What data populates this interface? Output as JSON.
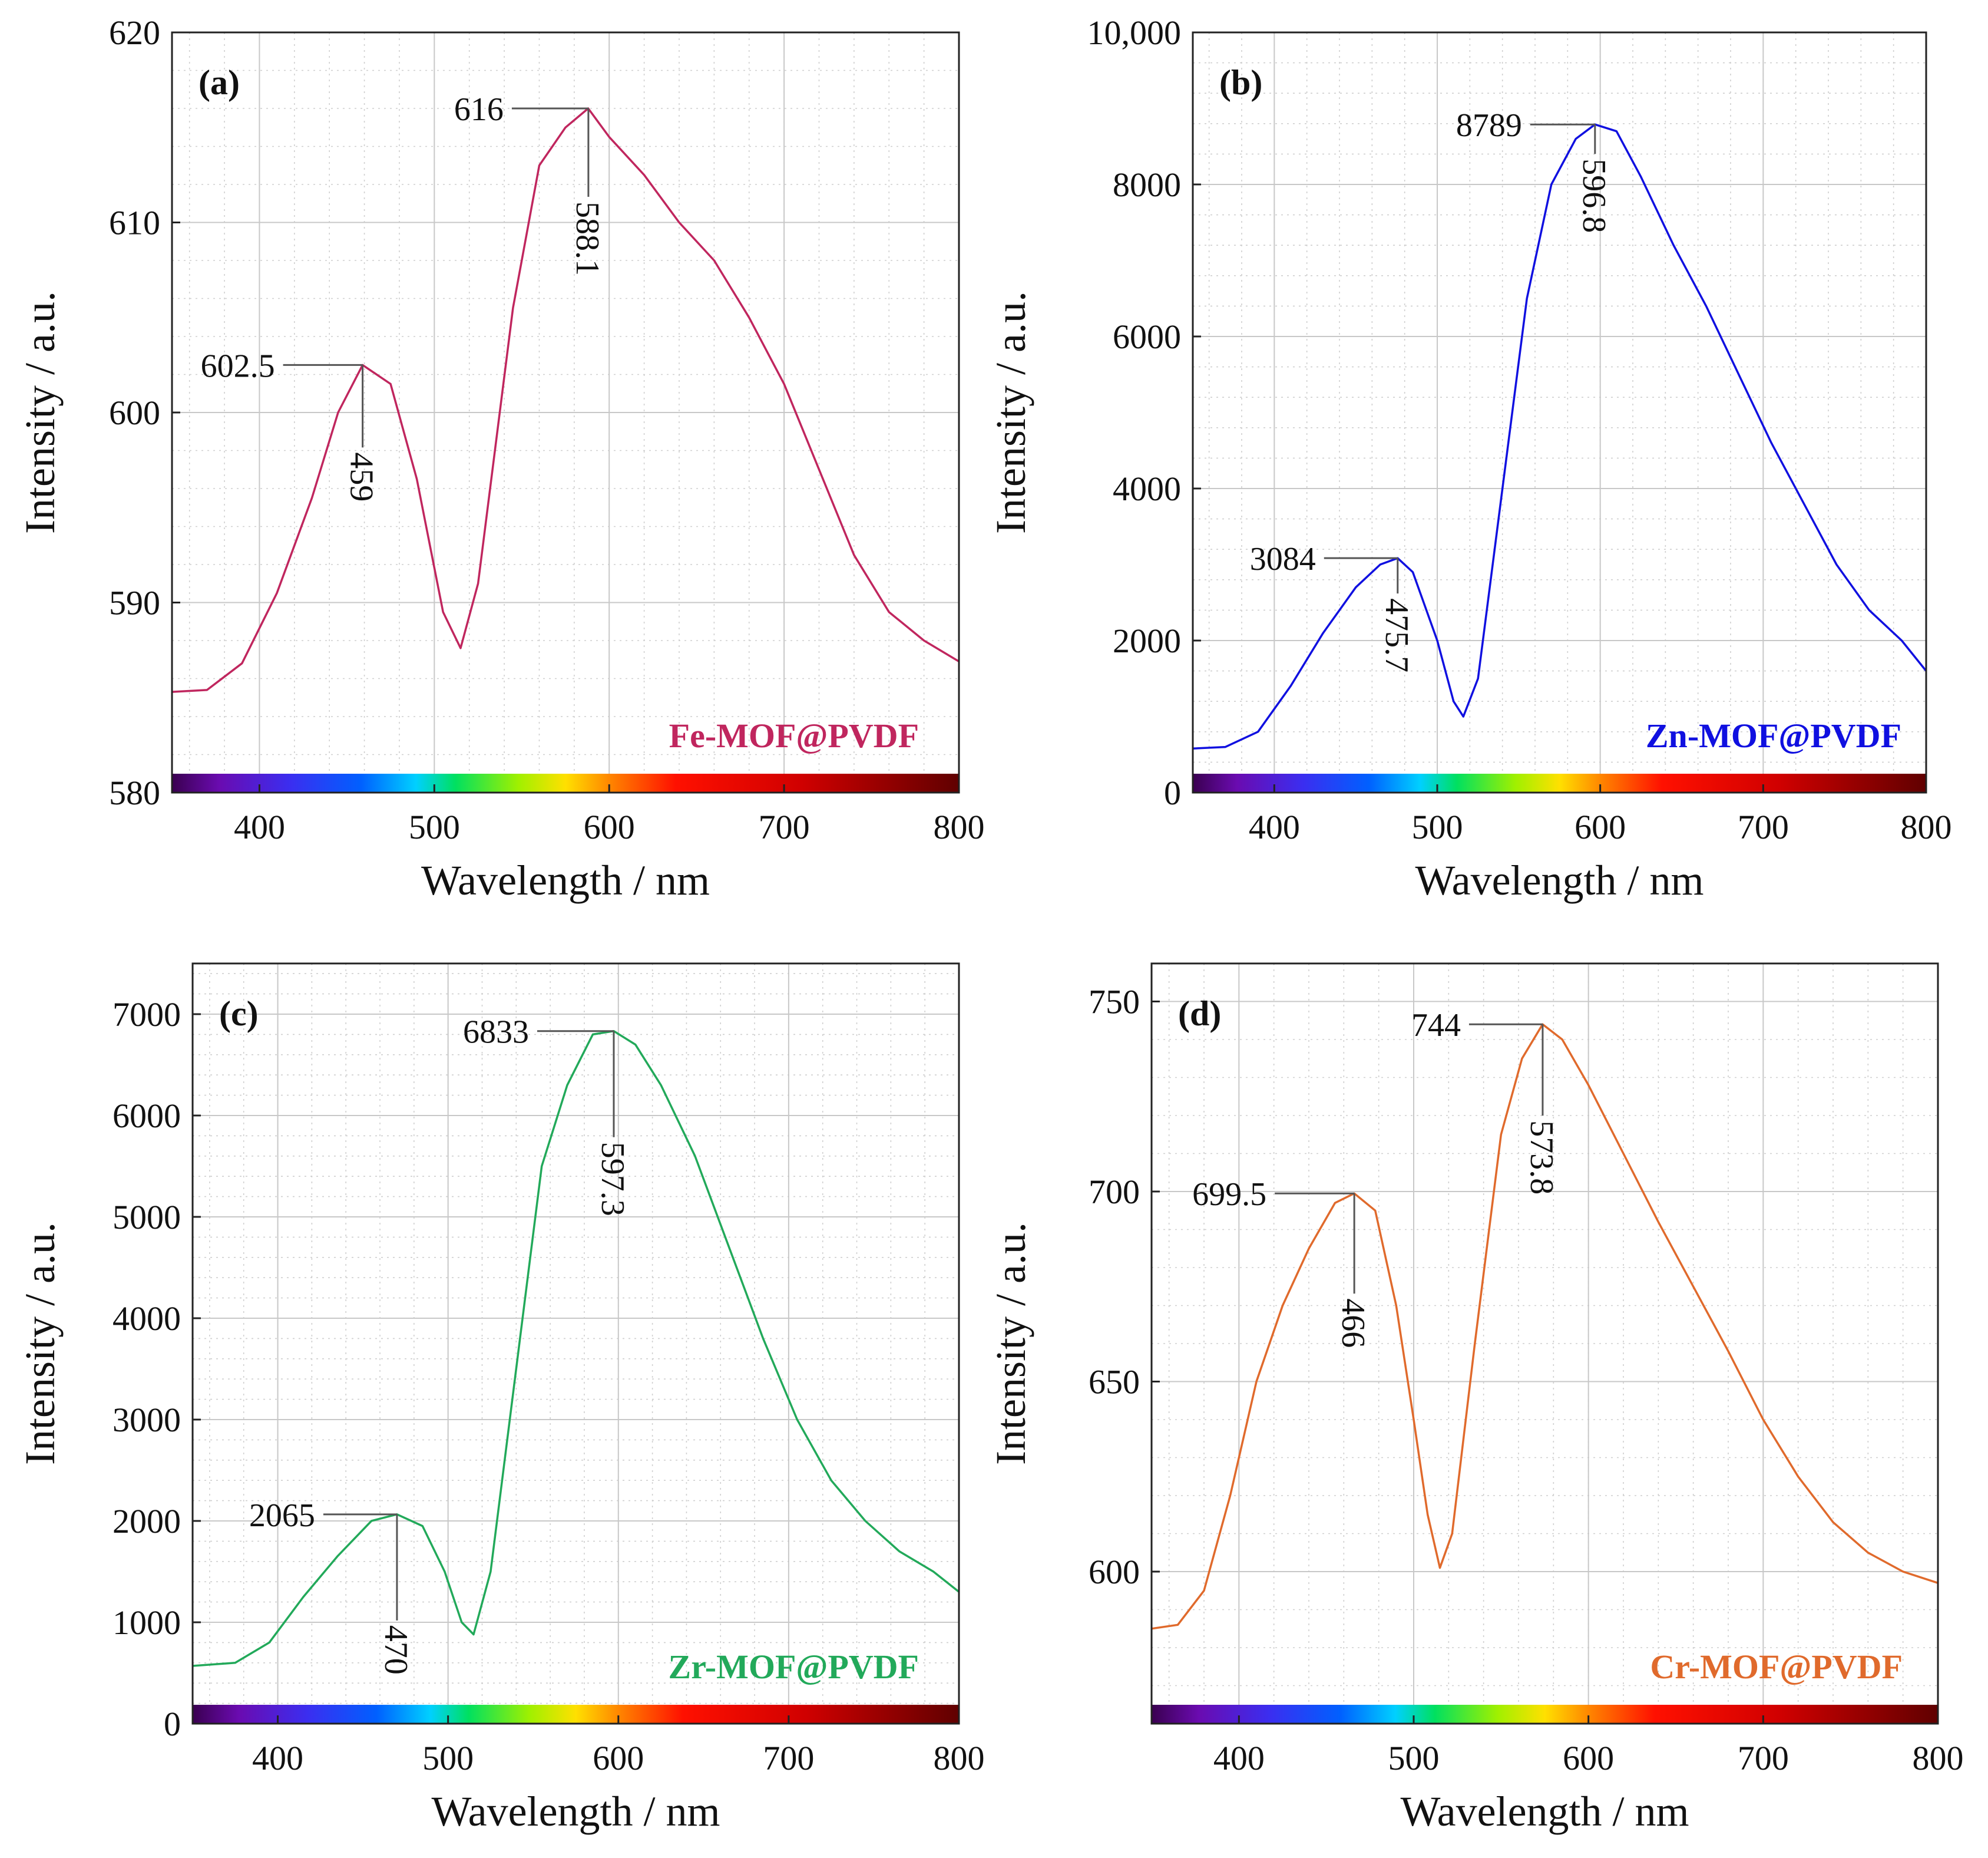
{
  "chart_data": [
    {
      "type": "line",
      "panel_label": "(a)",
      "series_name": "Fe-MOF@PVDF",
      "color": "#c0265e",
      "xlabel": "Wavelength / nm",
      "ylabel": "Intensity / a.u.",
      "xlim": [
        350,
        800
      ],
      "ylim": [
        580,
        620
      ],
      "xticks": [
        400,
        500,
        600,
        700,
        800
      ],
      "xtick_labels": [
        "400",
        "500",
        "600",
        "700",
        "800"
      ],
      "yticks": [
        580,
        590,
        600,
        610,
        620
      ],
      "ytick_labels": [
        "580",
        "590",
        "600",
        "610",
        "620"
      ],
      "points": [
        [
          350,
          585.3
        ],
        [
          370,
          585.4
        ],
        [
          390,
          586.8
        ],
        [
          410,
          590.5
        ],
        [
          430,
          595.5
        ],
        [
          445,
          600.0
        ],
        [
          459,
          602.5
        ],
        [
          475,
          601.5
        ],
        [
          490,
          596.5
        ],
        [
          505,
          589.5
        ],
        [
          515,
          587.6
        ],
        [
          525,
          591.0
        ],
        [
          545,
          605.5
        ],
        [
          560,
          613.0
        ],
        [
          575,
          615.0
        ],
        [
          588,
          616.0
        ],
        [
          600,
          614.5
        ],
        [
          620,
          612.5
        ],
        [
          640,
          610.0
        ],
        [
          660,
          608.0
        ],
        [
          680,
          605.0
        ],
        [
          700,
          601.5
        ],
        [
          720,
          597.0
        ],
        [
          740,
          592.5
        ],
        [
          760,
          589.5
        ],
        [
          780,
          588.0
        ],
        [
          800,
          586.9
        ]
      ],
      "annotations": [
        {
          "label": "602.5",
          "x": 459,
          "y": 602.5,
          "kind": "y"
        },
        {
          "label": "459",
          "x": 459,
          "y": 602.5,
          "kind": "x"
        },
        {
          "label": "616",
          "x": 588.1,
          "y": 616,
          "kind": "y"
        },
        {
          "label": "588.1",
          "x": 588.1,
          "y": 616,
          "kind": "x"
        }
      ]
    },
    {
      "type": "line",
      "panel_label": "(b)",
      "series_name": "Zn-MOF@PVDF",
      "color": "#1010e0",
      "xlabel": "Wavelength / nm",
      "ylabel": "Intensity / a.u.",
      "xlim": [
        350,
        800
      ],
      "ylim": [
        0,
        10000
      ],
      "xticks": [
        400,
        500,
        600,
        700,
        800
      ],
      "xtick_labels": [
        "400",
        "500",
        "600",
        "700",
        "800"
      ],
      "yticks": [
        0,
        2000,
        4000,
        6000,
        8000,
        10000
      ],
      "ytick_labels": [
        "0",
        "2000",
        "4000",
        "6000",
        "8000",
        "10,000"
      ],
      "points": [
        [
          350,
          580
        ],
        [
          370,
          600
        ],
        [
          390,
          800
        ],
        [
          410,
          1400
        ],
        [
          430,
          2100
        ],
        [
          450,
          2700
        ],
        [
          465,
          3000
        ],
        [
          475.7,
          3084
        ],
        [
          485,
          2900
        ],
        [
          500,
          2000
        ],
        [
          510,
          1200
        ],
        [
          516,
          1000
        ],
        [
          525,
          1500
        ],
        [
          540,
          4000
        ],
        [
          555,
          6500
        ],
        [
          570,
          8000
        ],
        [
          585,
          8600
        ],
        [
          596.8,
          8789
        ],
        [
          610,
          8700
        ],
        [
          625,
          8100
        ],
        [
          645,
          7200
        ],
        [
          665,
          6400
        ],
        [
          685,
          5500
        ],
        [
          705,
          4600
        ],
        [
          725,
          3800
        ],
        [
          745,
          3000
        ],
        [
          765,
          2400
        ],
        [
          785,
          2000
        ],
        [
          800,
          1600
        ]
      ],
      "annotations": [
        {
          "label": "3084",
          "x": 475.7,
          "y": 3084,
          "kind": "y"
        },
        {
          "label": "475.7",
          "x": 475.7,
          "y": 3084,
          "kind": "x"
        },
        {
          "label": "8789",
          "x": 596.8,
          "y": 8789,
          "kind": "y"
        },
        {
          "label": "596.8",
          "x": 596.8,
          "y": 8789,
          "kind": "x"
        }
      ]
    },
    {
      "type": "line",
      "panel_label": "(c)",
      "series_name": "Zr-MOF@PVDF",
      "color": "#22a95a",
      "xlabel": "Wavelength / nm",
      "ylabel": "Intensity / a.u.",
      "xlim": [
        350,
        800
      ],
      "ylim": [
        0,
        7500
      ],
      "xticks": [
        400,
        500,
        600,
        700,
        800
      ],
      "xtick_labels": [
        "400",
        "500",
        "600",
        "700",
        "800"
      ],
      "yticks": [
        0,
        1000,
        2000,
        3000,
        4000,
        5000,
        6000,
        7000
      ],
      "ytick_labels": [
        "0",
        "1000",
        "2000",
        "3000",
        "4000",
        "5000",
        "6000",
        "7000"
      ],
      "points": [
        [
          350,
          570
        ],
        [
          375,
          600
        ],
        [
          395,
          800
        ],
        [
          415,
          1250
        ],
        [
          435,
          1650
        ],
        [
          455,
          2000
        ],
        [
          470,
          2065
        ],
        [
          485,
          1950
        ],
        [
          498,
          1500
        ],
        [
          508,
          1000
        ],
        [
          515,
          880
        ],
        [
          525,
          1500
        ],
        [
          540,
          3500
        ],
        [
          555,
          5500
        ],
        [
          570,
          6300
        ],
        [
          585,
          6800
        ],
        [
          597.3,
          6833
        ],
        [
          610,
          6700
        ],
        [
          625,
          6300
        ],
        [
          645,
          5600
        ],
        [
          665,
          4700
        ],
        [
          685,
          3800
        ],
        [
          705,
          3000
        ],
        [
          725,
          2400
        ],
        [
          745,
          2000
        ],
        [
          765,
          1700
        ],
        [
          785,
          1500
        ],
        [
          800,
          1300
        ]
      ],
      "annotations": [
        {
          "label": "2065",
          "x": 470,
          "y": 2065,
          "kind": "y"
        },
        {
          "label": "470",
          "x": 470,
          "y": 2065,
          "kind": "x"
        },
        {
          "label": "6833",
          "x": 597.3,
          "y": 6833,
          "kind": "y"
        },
        {
          "label": "597.3",
          "x": 597.3,
          "y": 6833,
          "kind": "x"
        }
      ]
    },
    {
      "type": "line",
      "panel_label": "(d)",
      "series_name": "Cr-MOF@PVDF",
      "color": "#e06a2c",
      "xlabel": "Wavelength / nm",
      "ylabel": "Intensity / a.u.",
      "xlim": [
        350,
        800
      ],
      "ylim": [
        560,
        760
      ],
      "xticks": [
        400,
        500,
        600,
        700,
        800
      ],
      "xtick_labels": [
        "400",
        "500",
        "600",
        "700",
        "800"
      ],
      "yticks": [
        600,
        650,
        700,
        750
      ],
      "ytick_labels": [
        "600",
        "650",
        "700",
        "750"
      ],
      "points": [
        [
          350,
          585
        ],
        [
          365,
          586
        ],
        [
          380,
          595
        ],
        [
          395,
          620
        ],
        [
          410,
          650
        ],
        [
          425,
          670
        ],
        [
          440,
          685
        ],
        [
          455,
          697
        ],
        [
          466,
          699.5
        ],
        [
          478,
          695
        ],
        [
          490,
          670
        ],
        [
          500,
          640
        ],
        [
          508,
          615
        ],
        [
          515,
          601
        ],
        [
          522,
          610
        ],
        [
          535,
          660
        ],
        [
          550,
          715
        ],
        [
          562,
          735
        ],
        [
          573.8,
          744
        ],
        [
          585,
          740
        ],
        [
          600,
          728
        ],
        [
          620,
          710
        ],
        [
          640,
          692
        ],
        [
          660,
          675
        ],
        [
          680,
          658
        ],
        [
          700,
          640
        ],
        [
          720,
          625
        ],
        [
          740,
          613
        ],
        [
          760,
          605
        ],
        [
          780,
          600
        ],
        [
          800,
          597
        ]
      ],
      "annotations": [
        {
          "label": "699.5",
          "x": 466,
          "y": 699.5,
          "kind": "y"
        },
        {
          "label": "466",
          "x": 466,
          "y": 699.5,
          "kind": "x"
        },
        {
          "label": "744",
          "x": 573.8,
          "y": 744,
          "kind": "y"
        },
        {
          "label": "573.8",
          "x": 573.8,
          "y": 744,
          "kind": "x"
        }
      ]
    }
  ]
}
